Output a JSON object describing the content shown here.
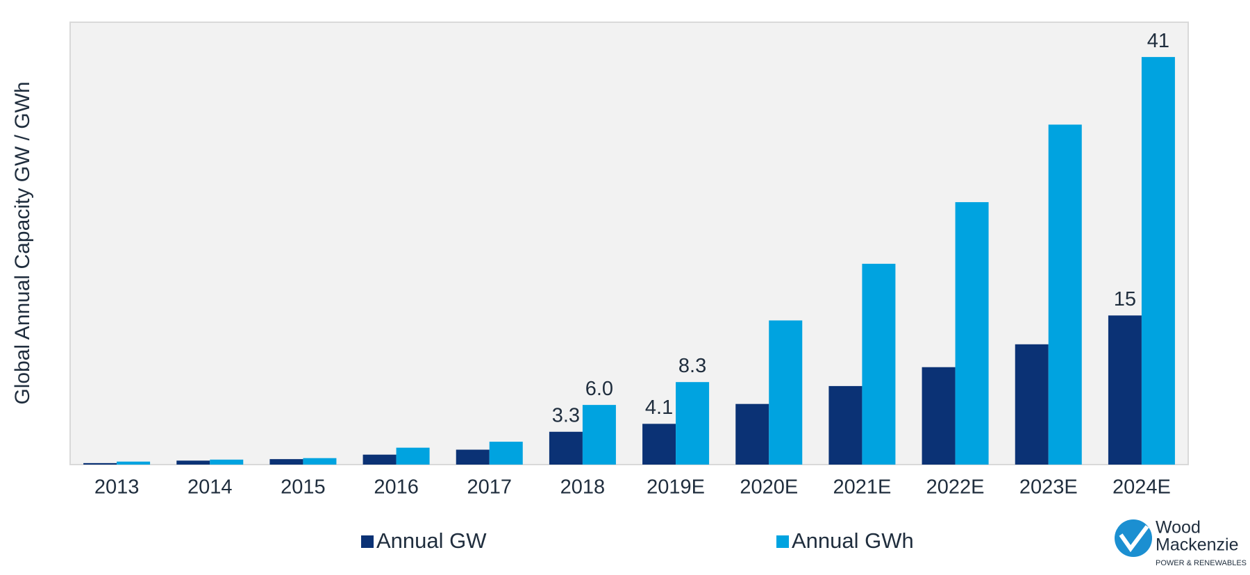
{
  "chart_data": {
    "type": "bar",
    "y_label": "Global Annual Capacity GW / GWh",
    "categories": [
      "2013",
      "2014",
      "2015",
      "2016",
      "2017",
      "2018",
      "2019E",
      "2020E",
      "2021E",
      "2022E",
      "2023E",
      "2024E"
    ],
    "series": [
      {
        "name": "Annual GW",
        "color": "#0b3275",
        "values": [
          0.15,
          0.4,
          0.55,
          1.0,
          1.5,
          3.3,
          4.1,
          6.1,
          7.9,
          9.8,
          12.1,
          15
        ],
        "value_labels": [
          null,
          null,
          null,
          null,
          null,
          "3.3",
          "4.1",
          null,
          null,
          null,
          null,
          "15"
        ]
      },
      {
        "name": "Annual GWh",
        "color": "#00a3e0",
        "values": [
          0.3,
          0.5,
          0.65,
          1.7,
          2.3,
          6.0,
          8.3,
          14.5,
          20.2,
          26.4,
          34.2,
          41
        ],
        "value_labels": [
          null,
          null,
          null,
          null,
          null,
          "6.0",
          "8.3",
          null,
          null,
          null,
          null,
          "41"
        ]
      }
    ],
    "ylim": [
      0,
      44.5
    ]
  },
  "logo": {
    "line1": "Wood",
    "line2": "Mackenzie",
    "line3": "POWER & RENEWABLES"
  }
}
